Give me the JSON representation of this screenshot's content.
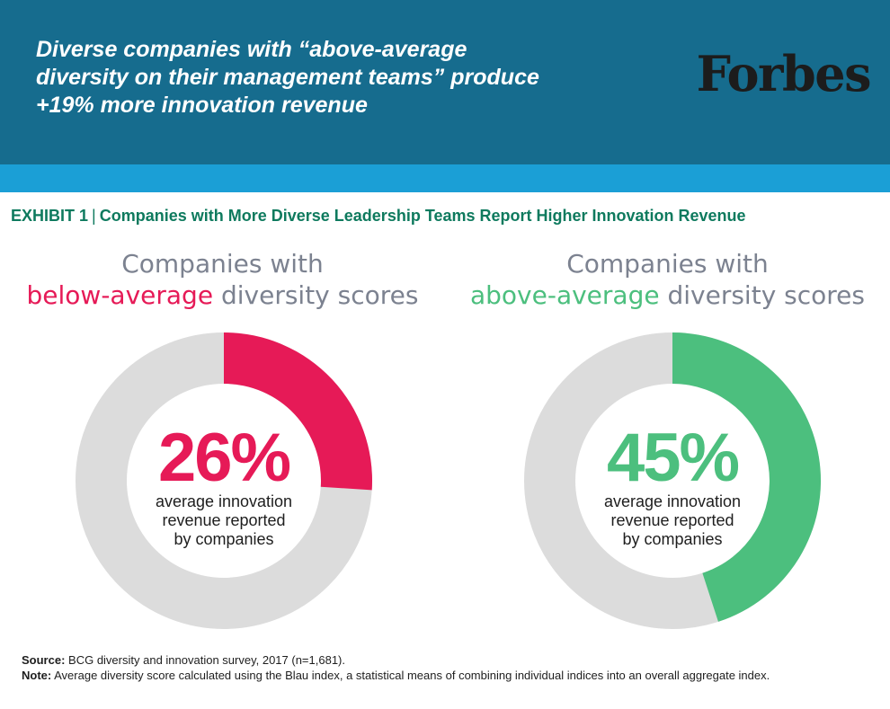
{
  "header": {
    "headline_lines": [
      "Diverse companies with “above-average",
      "diversity on their management teams” produce",
      "+19% more innovation revenue"
    ],
    "logo_text": "Forbes",
    "colors": {
      "header_bg": "#166c8e",
      "stripe": "#1b9fd6"
    }
  },
  "exhibit": {
    "label": "EXHIBIT 1",
    "separator": "|",
    "title": "Companies with More Diverse Leadership Teams Report Higher Innovation Revenue"
  },
  "chart_data": [
    {
      "type": "pie",
      "heading_prefix": "Companies with",
      "heading_highlight": "below-average",
      "heading_suffix": "diversity scores",
      "value": 26,
      "value_label": "26%",
      "caption_lines": [
        "average innovation",
        "revenue reported",
        "by companies"
      ],
      "color": "#e61a57",
      "track_color": "#dcdcdc"
    },
    {
      "type": "pie",
      "heading_prefix": "Companies with",
      "heading_highlight": "above-average",
      "heading_suffix": "diversity scores",
      "value": 45,
      "value_label": "45%",
      "caption_lines": [
        "average innovation",
        "revenue reported",
        "by companies"
      ],
      "color": "#4cbf7e",
      "track_color": "#dcdcdc"
    }
  ],
  "footer": {
    "source_label": "Source:",
    "source_text": "BCG diversity and innovation survey, 2017 (n=1,681).",
    "note_label": "Note:",
    "note_text": "Average diversity score calculated using the Blau index, a statistical means of combining individual indices into an overall aggregate index."
  }
}
